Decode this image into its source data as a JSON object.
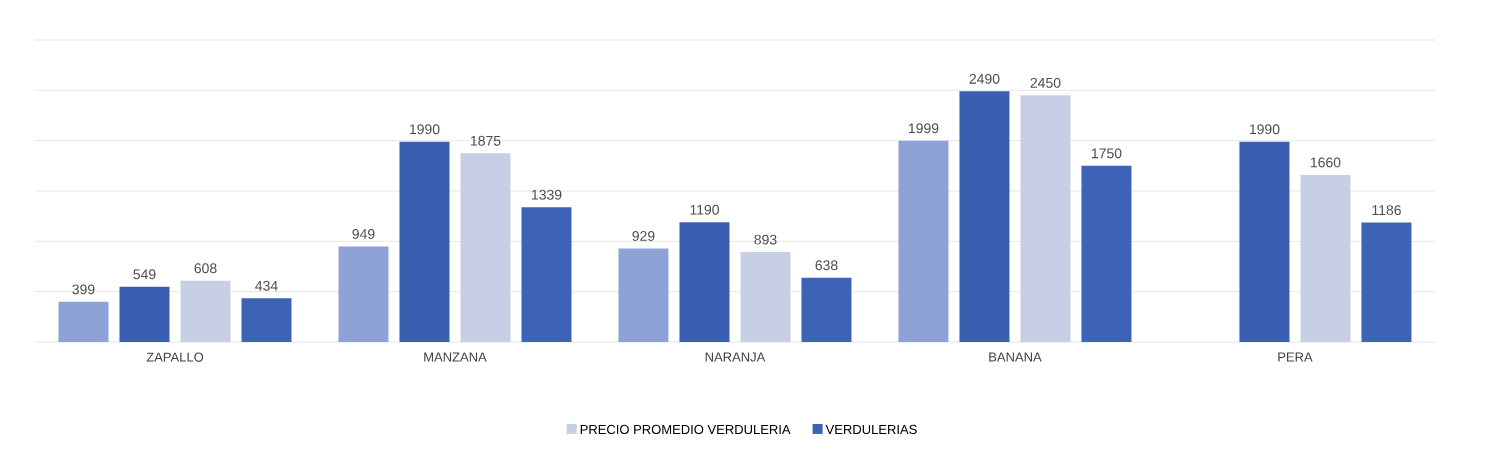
{
  "chart_data": {
    "type": "bar",
    "categories": [
      "ZAPALLO",
      "MANZANA",
      "NARANJA",
      "BANANA",
      "PERA"
    ],
    "series": [
      {
        "color": "#8fa2d6",
        "values": [
          399,
          949,
          929,
          1999,
          null
        ]
      },
      {
        "color": "#3a5fb0",
        "values": [
          549,
          1990,
          1190,
          2490,
          1990
        ]
      },
      {
        "name": "PRECIO PROMEDIO VERDULERIA",
        "color": "#c7cfe6",
        "values": [
          608,
          1875,
          893,
          2450,
          1660
        ]
      },
      {
        "name": "VERDULERIAS",
        "color": "#3d63b6",
        "values": [
          434,
          1339,
          638,
          1750,
          1186
        ]
      }
    ],
    "ylim": [
      0,
      3000
    ],
    "yticks": [
      {
        "value": 0,
        "label": null
      },
      {
        "value": 500,
        "label": null
      },
      {
        "value": 1000,
        "label": null
      },
      {
        "value": 1500,
        "label": null
      },
      {
        "value": 2000,
        "label": null
      },
      {
        "value": 2500,
        "label": null
      },
      {
        "value": 3000,
        "label": null
      }
    ],
    "tick_labels": "x",
    "grid": "y",
    "data_labels": true,
    "legend": "bottom"
  }
}
